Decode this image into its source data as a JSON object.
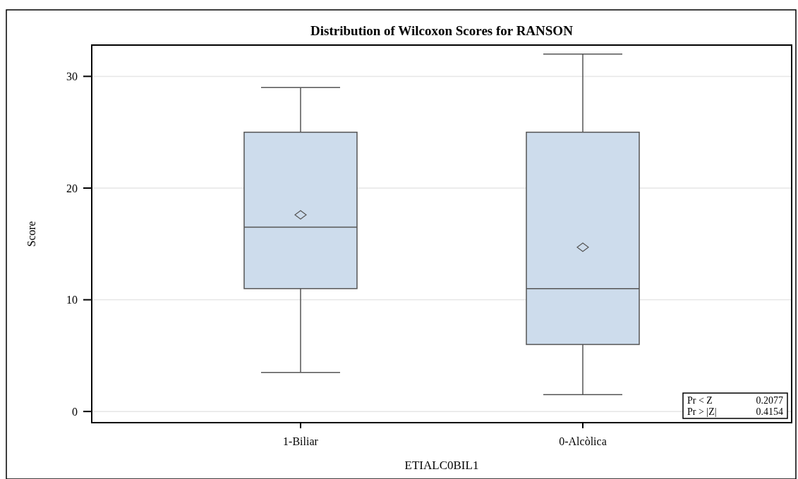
{
  "chart_data": {
    "type": "box",
    "title": "Distribution of Wilcoxon Scores for RANSON",
    "xlabel": "ETIALC0BIL1",
    "ylabel": "Score",
    "categories": [
      "1-Biliar",
      "0-Alcòlica"
    ],
    "boxes": [
      {
        "low": 3.5,
        "q1": 11,
        "median": 16.5,
        "q3": 25,
        "high": 29,
        "mean": 17.6
      },
      {
        "low": 1.5,
        "q1": 6,
        "median": 11,
        "q3": 25,
        "high": 32,
        "mean": 14.7
      }
    ],
    "color": "#cddcec",
    "ylim": [
      -1,
      32.8
    ],
    "yticks": [
      0,
      10,
      20,
      30
    ],
    "grid": "y",
    "annotations": [
      "Pr < Z",
      "0.2077",
      "Pr > |Z|",
      "0.4154"
    ]
  }
}
